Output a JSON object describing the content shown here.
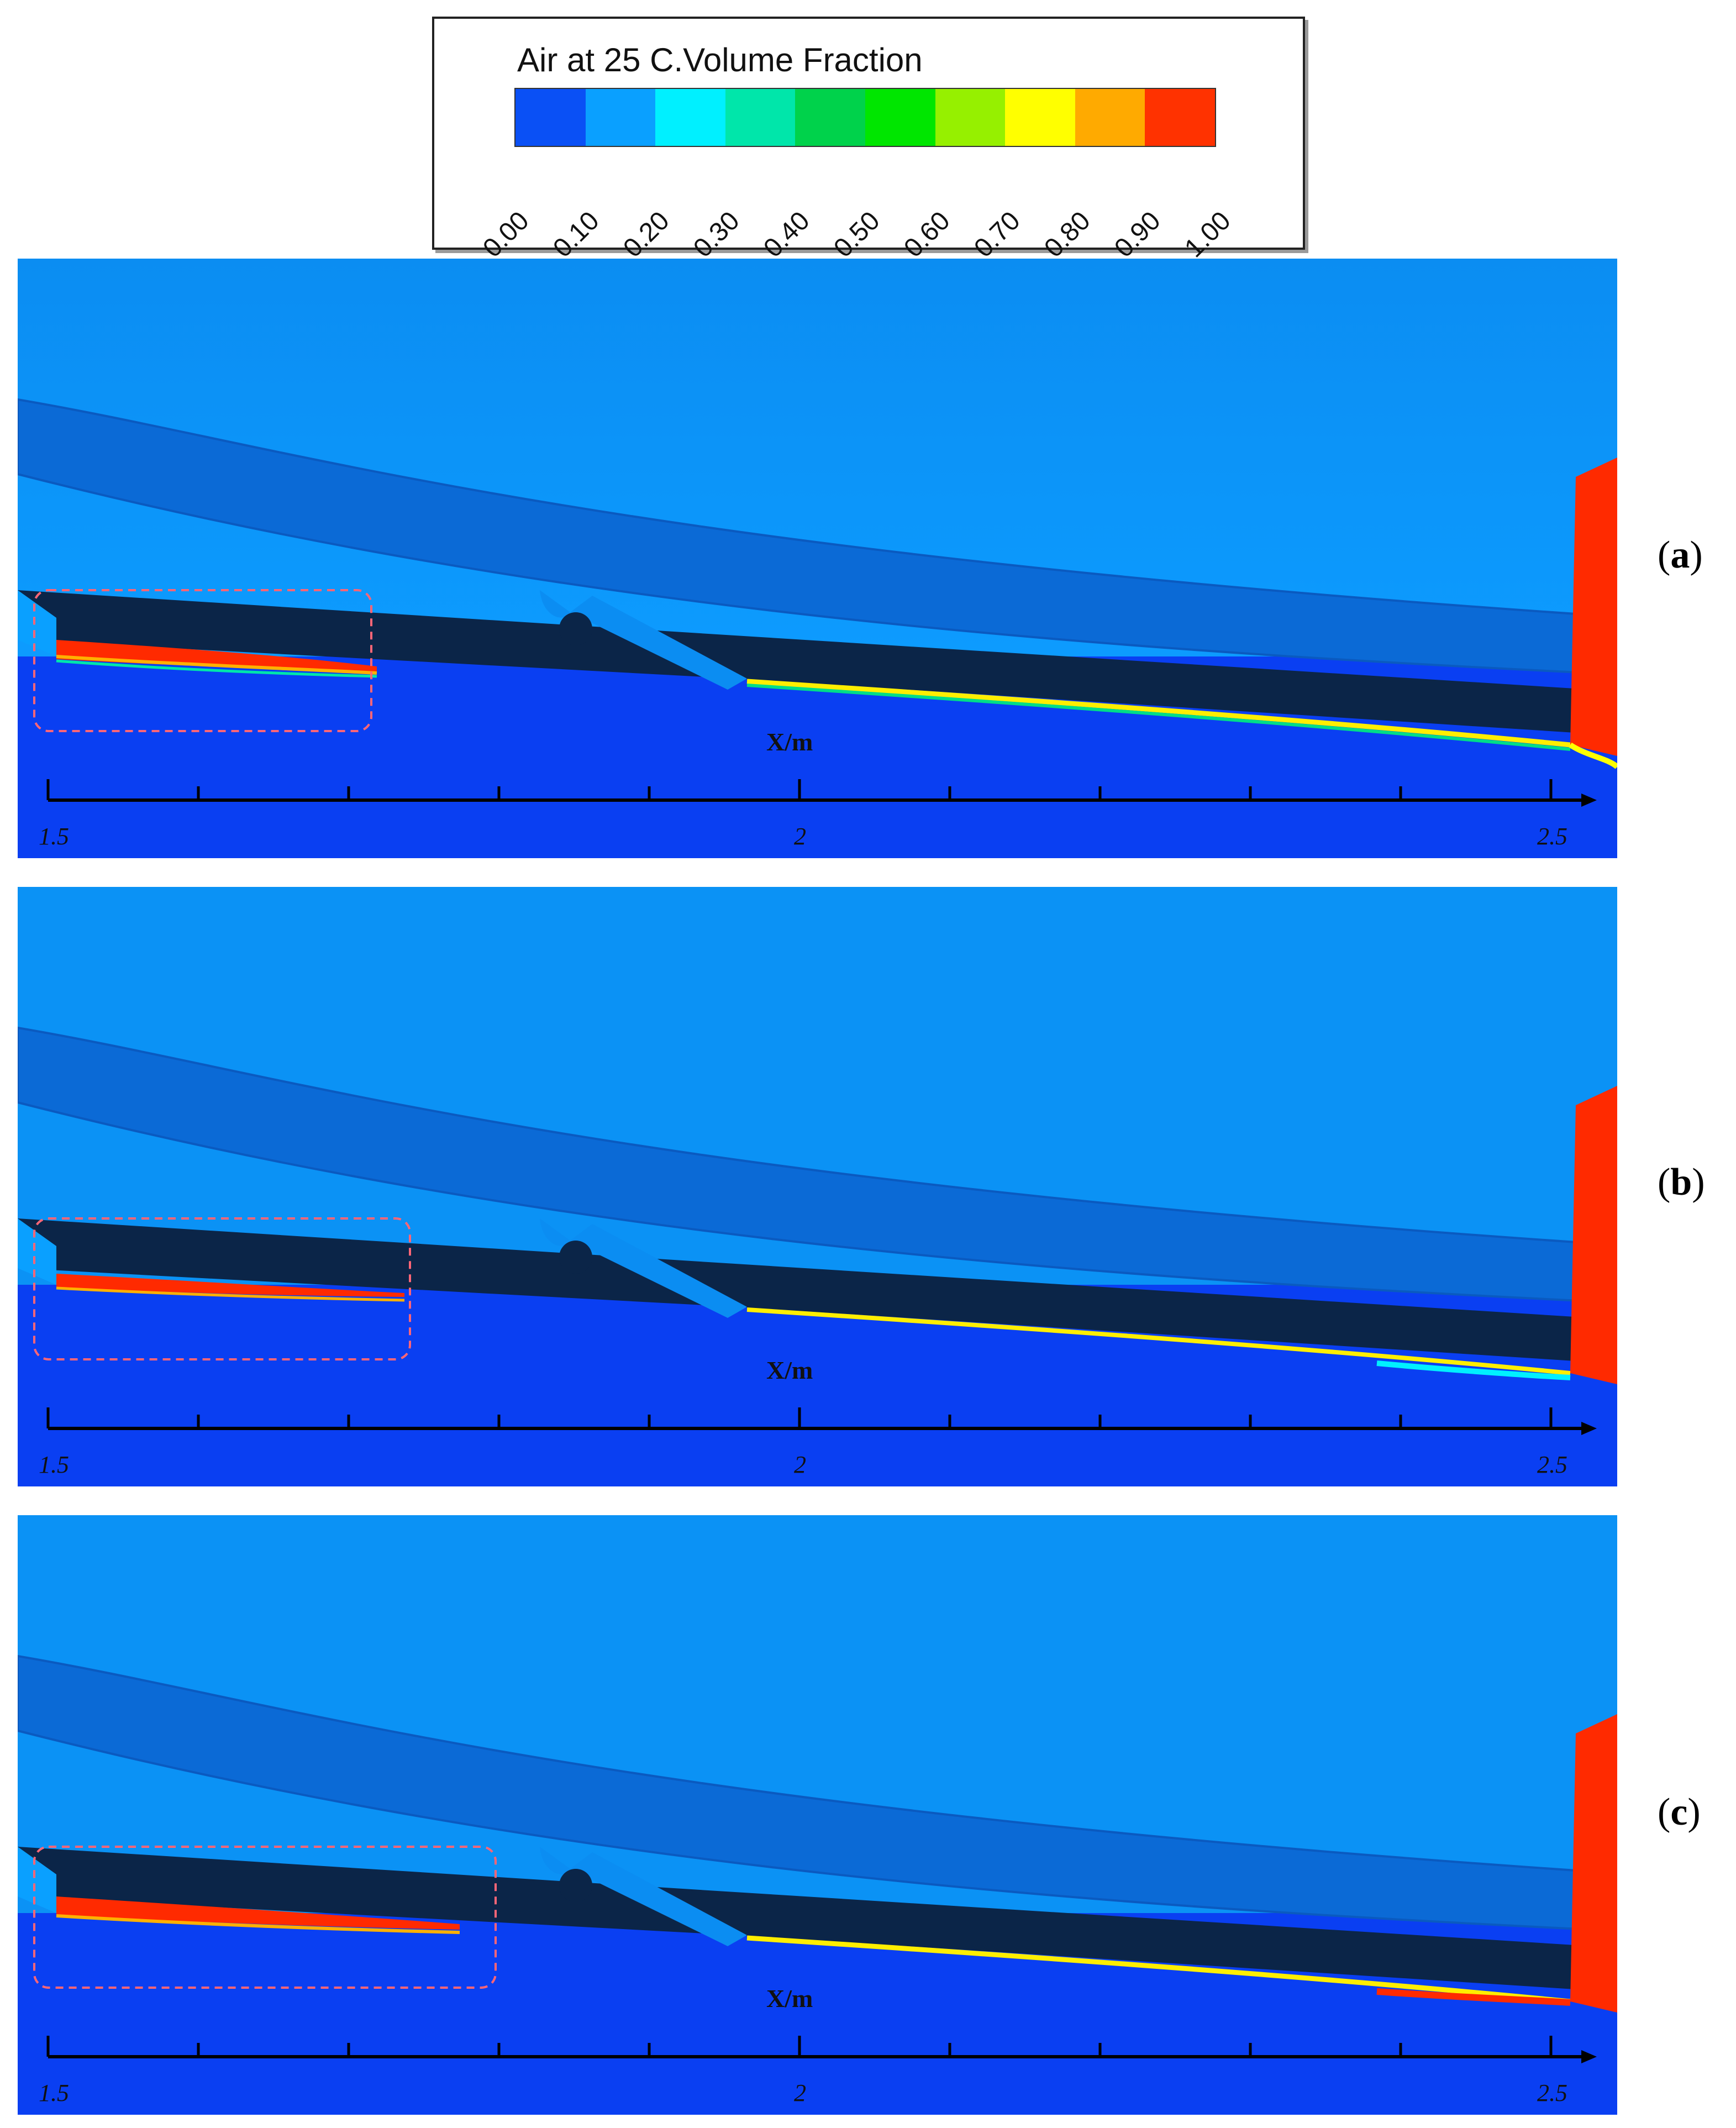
{
  "legend": {
    "title": "Air at 25 C.Volume Fraction",
    "levels": [
      "0.00",
      "0.10",
      "0.20",
      "0.30",
      "0.40",
      "0.50",
      "0.60",
      "0.70",
      "0.80",
      "0.90",
      "1.00"
    ],
    "colors": [
      "#0a50f5",
      "#0aa0ff",
      "#00f0ff",
      "#00e6aa",
      "#00d24b",
      "#00e600",
      "#96f000",
      "#ffff00",
      "#ffaa00",
      "#ff3200"
    ]
  },
  "panels": [
    {
      "label_open": "(",
      "label": "a",
      "label_close": ")",
      "xlabel": "X/m",
      "ticks": [
        "1.5",
        "2",
        "2.5"
      ]
    },
    {
      "label_open": "(",
      "label": "b",
      "label_close": ")",
      "xlabel": "X/m",
      "ticks": [
        "1.5",
        "2",
        "2.5"
      ]
    },
    {
      "label_open": "(",
      "label": "c",
      "label_close": ")",
      "xlabel": "X/m",
      "ticks": [
        "1.5",
        "2",
        "2.5"
      ]
    }
  ]
}
